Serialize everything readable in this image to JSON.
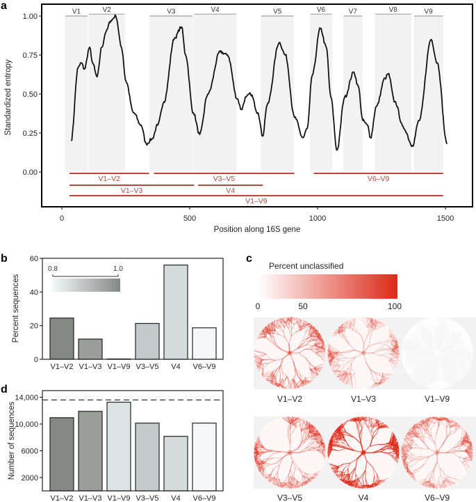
{
  "panels": {
    "a": "a",
    "b": "b",
    "c": "c",
    "d": "d"
  },
  "chart_data": [
    {
      "type": "line",
      "panel": "a",
      "xlabel": "Position along 16S gene",
      "ylabel": "Standardized entropy",
      "xlim": [
        0,
        1500
      ],
      "ylim": [
        0,
        1
      ],
      "xticks": [
        "0",
        "500",
        "1000",
        "1500"
      ],
      "xtick_values": [
        0,
        500,
        1000,
        1500
      ],
      "yticks": [
        "0.00",
        "0.25",
        "0.50",
        "0.75",
        "1.00"
      ],
      "ytick_values": [
        0,
        0.25,
        0.5,
        0.75,
        1.0
      ],
      "series": [
        {
          "x": [
            36,
            64,
            76,
            88,
            109,
            118,
            138,
            156,
            173,
            191,
            211,
            233,
            251,
            280,
            310,
            330,
            352,
            375,
            399,
            441,
            468,
            484,
            514,
            539,
            571,
            619,
            648,
            686,
            702,
            720,
            738,
            767,
            785,
            803,
            850,
            874,
            910,
            943,
            960,
            979,
            1011,
            1034,
            1052,
            1076,
            1106,
            1142,
            1159,
            1177,
            1195,
            1207,
            1230,
            1264,
            1276,
            1302,
            1337,
            1371,
            1397,
            1444,
            1468,
            1506
          ],
          "y": [
            0.2,
            0.67,
            0.7,
            0.66,
            0.8,
            0.71,
            0.61,
            0.8,
            0.9,
            0.97,
            1.0,
            0.8,
            0.58,
            0.38,
            0.3,
            0.18,
            0.21,
            0.3,
            0.45,
            0.86,
            0.93,
            0.75,
            0.38,
            0.24,
            0.5,
            0.77,
            0.75,
            0.47,
            0.4,
            0.48,
            0.5,
            0.38,
            0.23,
            0.43,
            0.83,
            0.75,
            0.35,
            0.22,
            0.28,
            0.62,
            0.92,
            0.8,
            0.48,
            0.14,
            0.48,
            0.64,
            0.55,
            0.33,
            0.3,
            0.22,
            0.42,
            0.6,
            0.63,
            0.45,
            0.28,
            0.17,
            0.33,
            0.85,
            0.7,
            0.18
          ],
          "color": "#111111"
        }
      ],
      "variable_regions": [
        {
          "label": "V1",
          "start": 11,
          "end": 103
        },
        {
          "label": "V2",
          "start": 103,
          "end": 249
        },
        {
          "label": "V3",
          "start": 341,
          "end": 514
        },
        {
          "label": "V4",
          "start": 514,
          "end": 685
        },
        {
          "label": "V5",
          "start": 777,
          "end": 909
        },
        {
          "label": "V6",
          "start": 968,
          "end": 1059
        },
        {
          "label": "V7",
          "start": 1099,
          "end": 1177
        },
        {
          "label": "V8",
          "start": 1222,
          "end": 1369
        },
        {
          "label": "V9",
          "start": 1375,
          "end": 1492
        }
      ],
      "amplicons": [
        {
          "label": "V1–V2",
          "start": 30,
          "end": 341,
          "row": 0
        },
        {
          "label": "V3–V5",
          "start": 360,
          "end": 909,
          "row": 0
        },
        {
          "label": "V6–V9",
          "start": 985,
          "end": 1491,
          "row": 0
        },
        {
          "label": "V1–V3",
          "start": 30,
          "end": 517,
          "row": 1
        },
        {
          "label": "V4",
          "start": 533,
          "end": 786,
          "row": 1
        },
        {
          "label": "V1–V9",
          "start": 30,
          "end": 1491,
          "row": 2
        }
      ],
      "colors": {
        "region_fill": "#f2f2f2",
        "region_bar": "#c0c0c0",
        "amplicon": "#b5483f"
      }
    },
    {
      "type": "bar",
      "panel": "b",
      "ylabel": "Percent sequences",
      "ylim": [
        0,
        60
      ],
      "yticks": [
        "0",
        "20",
        "40",
        "60"
      ],
      "ytick_values": [
        0,
        20,
        40,
        60
      ],
      "categories": [
        "V1–V2",
        "V1–V3",
        "V1–V9",
        "V3–V5",
        "V4",
        "V6–V9"
      ],
      "values": [
        24.5,
        12,
        0.2,
        21.3,
        56,
        18.7
      ],
      "colors": [
        "#868886",
        "#9a9d9a",
        "#dce4e3",
        "#c3c9c9",
        "#d4dcdd",
        "#f4f8f9"
      ],
      "colorbar": {
        "min_label": "0.8",
        "max_label": "1.0",
        "from": "#f4fafa",
        "to": "#858786"
      }
    },
    {
      "type": "bar",
      "panel": "d",
      "ylabel": "Number of sequences",
      "ylim": [
        0,
        15000
      ],
      "yticks": [
        "2000",
        "6000",
        "10,000",
        "14,000"
      ],
      "ytick_values": [
        2000,
        6000,
        10000,
        14000
      ],
      "categories": [
        "V1–V2",
        "V1–V3",
        "V1–V9",
        "V3–V5",
        "V4",
        "V6–V9"
      ],
      "values": [
        10950,
        11900,
        13270,
        10140,
        8160,
        10140
      ],
      "colors": [
        "#868886",
        "#9a9d9a",
        "#dce4e3",
        "#c3c9c9",
        "#d4dcdd",
        "#f4f8f9"
      ],
      "reference_line": 13600
    },
    {
      "type": "heatmap",
      "panel": "c",
      "legend_title": "Percent unclassified",
      "legend_ticks": [
        "0",
        "50",
        "100"
      ],
      "legend_tick_values": [
        0,
        50,
        100
      ],
      "colors": {
        "low": "#ffffff",
        "high": "#dc2a18",
        "background": "#f2f2f2"
      },
      "trees": [
        {
          "label": "V1–V2",
          "level": 0.35
        },
        {
          "label": "V1–V3",
          "level": 0.2
        },
        {
          "label": "V1–V9",
          "level": 0.02
        },
        {
          "label": "V3–V5",
          "level": 0.3
        },
        {
          "label": "V4",
          "level": 0.75
        },
        {
          "label": "V6–V9",
          "level": 0.25
        }
      ]
    }
  ]
}
